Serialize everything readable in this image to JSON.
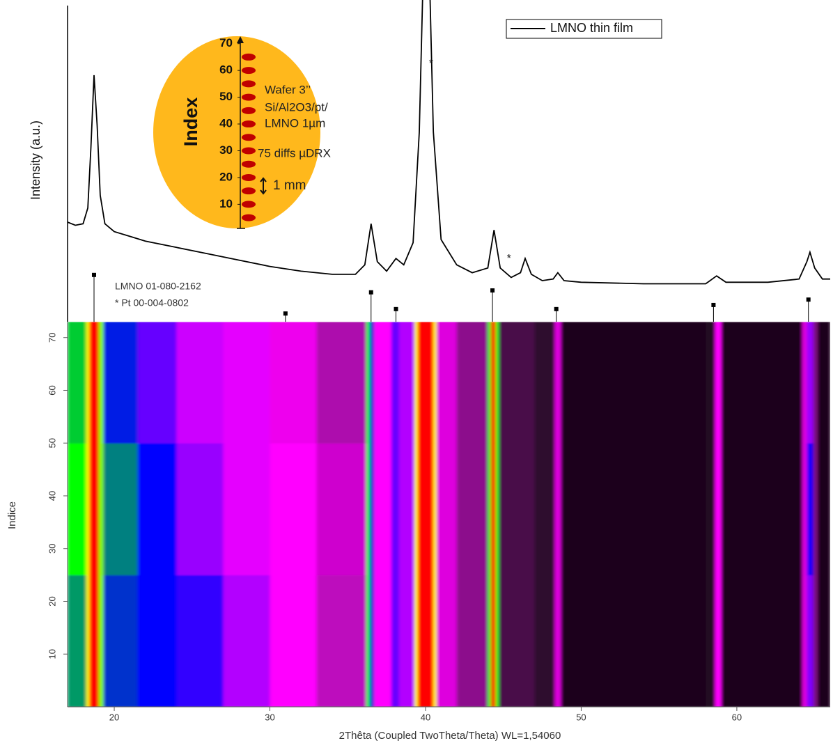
{
  "chart_data": [
    {
      "type": "line",
      "ylabel": "Intensity (a.u.)",
      "xlim": [
        17,
        66
      ],
      "ylim": [
        0,
        100
      ],
      "series": [
        {
          "name": "LMNO thin film",
          "color": "#000000",
          "x": [
            17,
            17.5,
            18,
            18.3,
            18.5,
            18.7,
            18.9,
            19.1,
            19.4,
            20,
            21,
            22,
            24,
            26,
            28,
            30,
            32,
            34,
            35.5,
            36.1,
            36.5,
            36.9,
            37.5,
            38.1,
            38.6,
            39.2,
            39.6,
            39.85,
            40.25,
            40.5,
            41,
            42,
            43,
            44,
            44.4,
            44.8,
            45.5,
            46.1,
            46.4,
            46.8,
            47.5,
            48.2,
            48.5,
            48.9,
            50,
            54,
            58,
            58.7,
            59.3,
            62,
            64,
            64.5,
            64.7,
            65,
            65.5,
            66
          ],
          "values": [
            31.5,
            30.5,
            31,
            36,
            55,
            78,
            62,
            40,
            31,
            28.5,
            27,
            25.5,
            23.5,
            21.5,
            19.5,
            17.5,
            16,
            15,
            15,
            18,
            31,
            19,
            16,
            20,
            18,
            25,
            60,
            110,
            110,
            60,
            26,
            18,
            15.5,
            17,
            29,
            17,
            14,
            15.5,
            20,
            15,
            13,
            13.5,
            15.5,
            13,
            12.5,
            12,
            12,
            14.5,
            12.5,
            12.5,
            13.5,
            19,
            22,
            17,
            13.5,
            13.5
          ]
        }
      ],
      "reference": {
        "name": "LMNO 01-080-2162",
        "note": "* Pt 00-004-0802",
        "color": "#000000",
        "x": [
          18.7,
          31,
          36.5,
          38.1,
          44.3,
          48.4,
          58.5,
          64.6
        ],
        "values": [
          14.8,
          2.6,
          9.3,
          4,
          9.9,
          4,
          5.3,
          7
        ]
      },
      "annotations": [
        {
          "text": "*",
          "x": 40.0,
          "y": 82.4
        },
        {
          "text": "*",
          "x": 45.0,
          "y": 20.7
        }
      ],
      "legend": "upper right",
      "inset": {
        "title": "Index",
        "ylim": [
          1,
          72
        ],
        "yticks": [
          10,
          20,
          30,
          40,
          50,
          60,
          70
        ],
        "points": [
          5,
          10,
          15,
          20,
          25,
          30,
          35,
          40,
          45,
          50,
          55,
          60,
          65
        ],
        "texts": [
          "Wafer 3’’",
          "Si/Al2O3/pt/",
          "LMNO 1µm",
          "75 diffs µDRX",
          "1 mm"
        ]
      }
    },
    {
      "type": "heatmap",
      "xlabel": "2Thêta (Coupled TwoTheta/Theta) WL=1,54060",
      "ylabel": "Indice",
      "xlim": [
        17,
        66
      ],
      "ylim": [
        0,
        73
      ],
      "xticks": [
        20,
        30,
        40,
        50,
        60
      ],
      "yticks": [
        10,
        20,
        30,
        40,
        50,
        60,
        70
      ],
      "xbins": [
        17,
        18.2,
        18.4,
        19.0,
        19.3,
        21.5,
        24,
        27,
        30,
        33,
        36.2,
        36.4,
        36.7,
        37.8,
        38.3,
        39.3,
        39.5,
        40.5,
        40.7,
        42,
        44,
        44.2,
        44.5,
        44.7,
        47,
        48.3,
        48.7,
        58,
        58.6,
        59,
        64.2,
        64.5,
        64.9,
        65.2,
        66
      ],
      "ybins": [
        0,
        25,
        50,
        73
      ],
      "z": [
        [
          3.6,
          5,
          6,
          4.5,
          3.2,
          3,
          2.8,
          2.3,
          2,
          1.6,
          4,
          3.2,
          2,
          2.6,
          2.3,
          5,
          6,
          5,
          1.8,
          1.3,
          4,
          6,
          4,
          0.8,
          0.5,
          1.8,
          0.3,
          0.4,
          2,
          0.3,
          1.8,
          2.5,
          1.2,
          0.3
        ],
        [
          4,
          5,
          6,
          4.5,
          3.5,
          3,
          2.4,
          2.1,
          2,
          1.7,
          4,
          3.2,
          2,
          2.6,
          2.3,
          5,
          6,
          5,
          1.8,
          1.3,
          4,
          6,
          4,
          0.8,
          0.5,
          1.8,
          0.3,
          0.4,
          2,
          0.3,
          1.8,
          3,
          1.2,
          0.3
        ],
        [
          3.8,
          5,
          6,
          4.5,
          3.1,
          2.6,
          2.2,
          2.1,
          1.9,
          1.5,
          4,
          3.2,
          2,
          2.6,
          2.3,
          5,
          6,
          5,
          1.8,
          1.3,
          4,
          6,
          4,
          0.8,
          0.5,
          1.8,
          0.3,
          0.4,
          2,
          0.3,
          1.8,
          2.4,
          1.2,
          0.3
        ]
      ],
      "colorscale": [
        [
          0,
          "#000000"
        ],
        [
          1,
          "#5a145a"
        ],
        [
          2,
          "#ff00ff"
        ],
        [
          3,
          "#0000ff"
        ],
        [
          4,
          "#00ff00"
        ],
        [
          5,
          "#ffff00"
        ],
        [
          6,
          "#ff0000"
        ]
      ]
    }
  ]
}
